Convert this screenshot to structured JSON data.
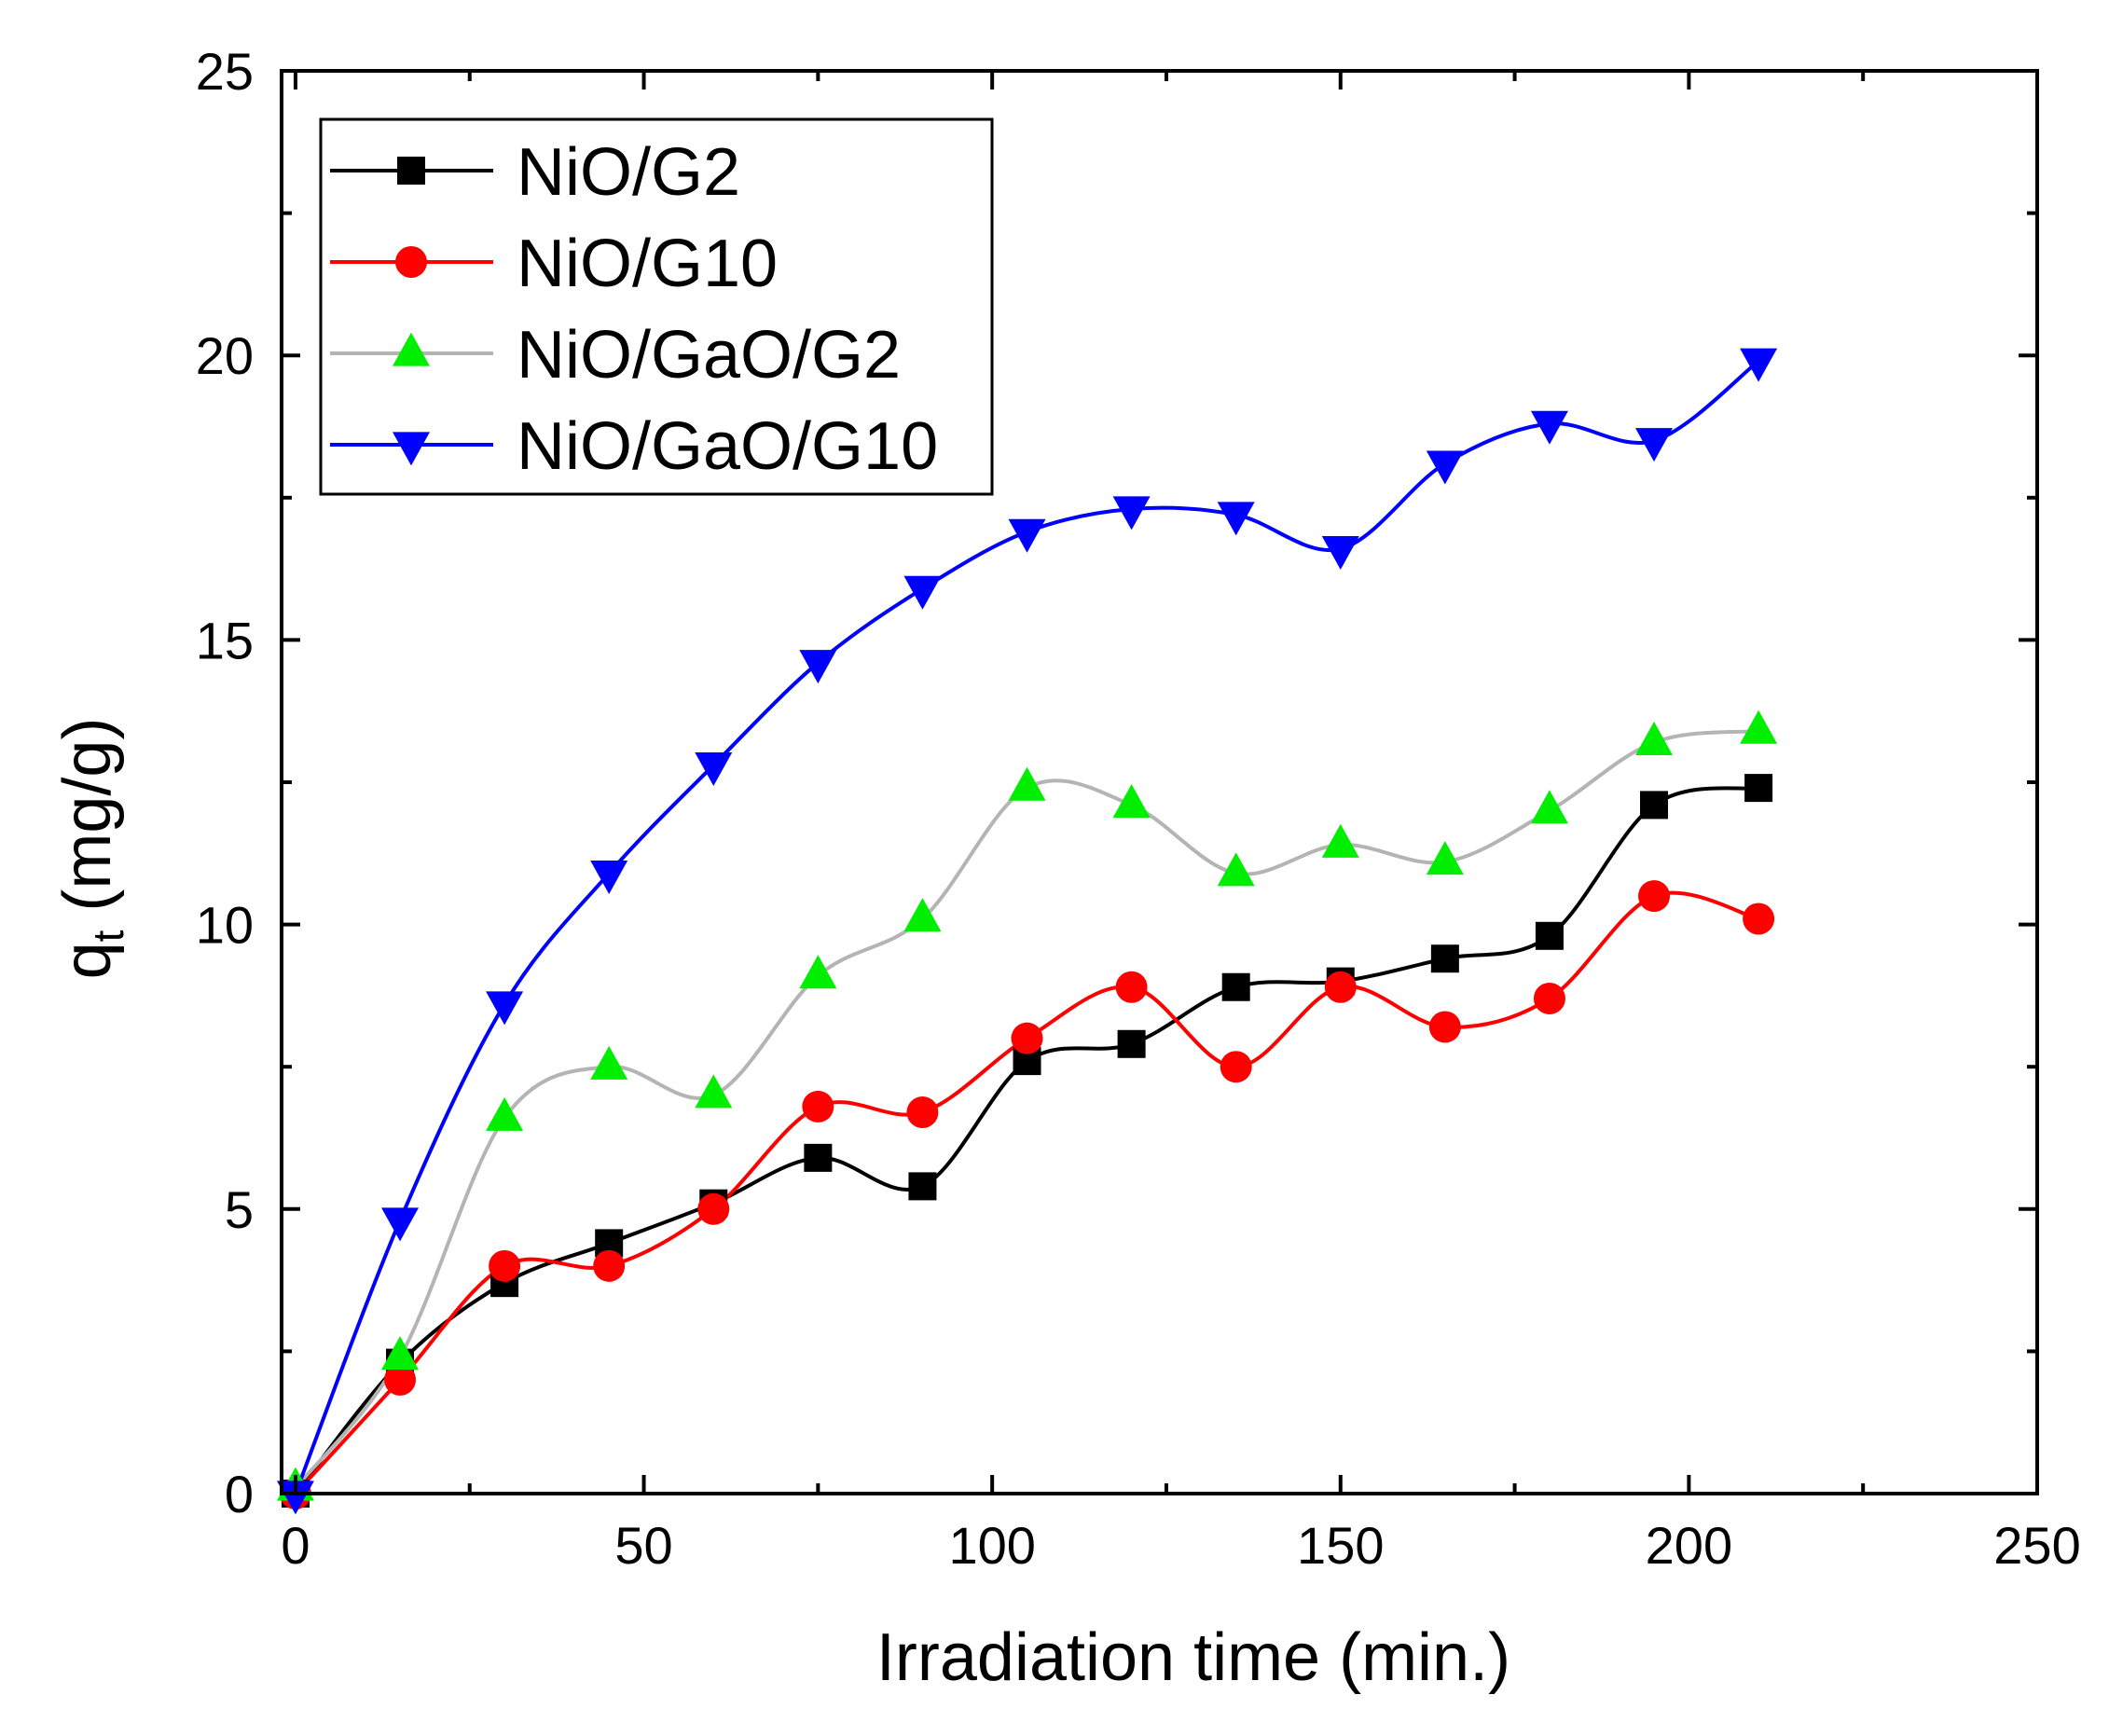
{
  "chart_data": {
    "type": "line",
    "title": "",
    "xlabel": "Irradiation time (min.)",
    "ylabel_main": "q",
    "ylabel_sub": "t",
    "ylabel_rest": " (mg/g)",
    "xlim": [
      -2,
      250
    ],
    "ylim": [
      0,
      25
    ],
    "xticks": [
      0,
      50,
      100,
      150,
      200,
      250
    ],
    "yticks": [
      0,
      5,
      10,
      15,
      20,
      25
    ],
    "x": [
      0,
      15,
      30,
      45,
      60,
      75,
      90,
      105,
      120,
      135,
      150,
      165,
      180,
      195,
      210
    ],
    "legend_position": "top-left",
    "series": [
      {
        "name": "NiO/G2",
        "color": "#000000",
        "marker": "square",
        "values": [
          0,
          2.3,
          3.7,
          4.4,
          5.1,
          5.9,
          5.4,
          7.6,
          7.9,
          8.9,
          9.0,
          9.4,
          9.8,
          12.1,
          12.4
        ]
      },
      {
        "name": "NiO/G10",
        "color": "#ff0000",
        "marker": "circle",
        "values": [
          0,
          2.0,
          4.0,
          4.0,
          5.0,
          6.8,
          6.7,
          8.0,
          8.9,
          7.5,
          8.9,
          8.2,
          8.7,
          10.5,
          10.1
        ]
      },
      {
        "name": "NiO/GaO/G2",
        "color": "#00ee00",
        "lineColor": "#b4b4b4",
        "marker": "triangle-up",
        "values": [
          0.1,
          2.4,
          6.6,
          7.5,
          7.0,
          9.1,
          10.1,
          12.4,
          12.1,
          10.9,
          11.4,
          11.1,
          12.0,
          13.2,
          13.4
        ]
      },
      {
        "name": "NiO/GaO/G10",
        "color": "#0000ff",
        "marker": "triangle-down",
        "values": [
          0,
          4.8,
          8.6,
          10.9,
          12.8,
          14.6,
          15.9,
          16.9,
          17.3,
          17.2,
          16.6,
          18.1,
          18.8,
          18.5,
          19.9
        ]
      }
    ]
  }
}
